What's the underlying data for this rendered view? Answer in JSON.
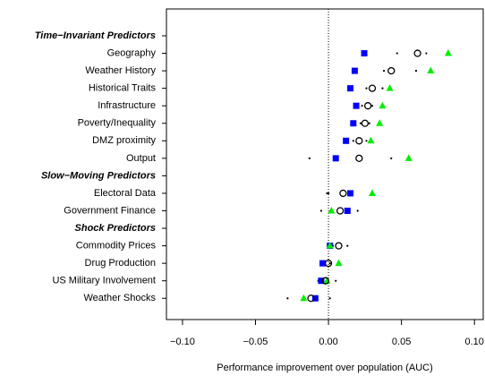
{
  "chart_data": {
    "type": "dotplot",
    "xlabel": "Performance improvement over population (AUC)",
    "categories": [
      "Time−Invariant Predictors",
      "Geography",
      "Weather History",
      "Historical Traits",
      "Infrastructure",
      "Poverty/Inequality",
      "DMZ proximity",
      "Output",
      "Slow−Moving Predictors",
      "Electoral Data",
      "Government Finance",
      "Shock Predictors",
      "Commodity Prices",
      "Drug Production",
      "US Military Involvement",
      "Weather Shocks"
    ],
    "category_style": [
      "header",
      "item",
      "item",
      "item",
      "item",
      "item",
      "item",
      "item",
      "header",
      "item",
      "item",
      "header",
      "item",
      "item",
      "item",
      "item"
    ],
    "series": [
      {
        "marker": "dot",
        "color": "#000000",
        "values": [
          null,
          0.047,
          0.038,
          0.026,
          0.023,
          0.022,
          0.017,
          -0.013,
          null,
          -0.001,
          -0.005,
          null,
          0.003,
          -0.004,
          -0.007,
          -0.028
        ]
      },
      {
        "marker": "dot",
        "color": "#000000",
        "values": [
          null,
          0.067,
          0.06,
          0.037,
          0.03,
          0.028,
          0.026,
          0.043,
          null,
          0.0,
          0.02,
          null,
          0.013,
          0.001,
          0.005,
          0.001
        ]
      },
      {
        "marker": "square",
        "color": "#0000ff",
        "values": [
          null,
          0.0245,
          0.018,
          0.015,
          0.019,
          0.017,
          0.012,
          0.005,
          null,
          0.015,
          0.013,
          null,
          0.001,
          -0.004,
          -0.005,
          -0.009
        ]
      },
      {
        "marker": "triangle",
        "color": "#00ee00",
        "values": [
          null,
          0.082,
          0.07,
          0.042,
          0.037,
          0.035,
          0.029,
          0.055,
          null,
          0.03,
          0.002,
          null,
          0.001,
          0.007,
          -0.001,
          -0.017
        ]
      },
      {
        "marker": "circle",
        "color": "#000000",
        "values": [
          null,
          0.061,
          0.043,
          0.03,
          0.027,
          0.025,
          0.021,
          0.021,
          null,
          0.01,
          0.008,
          null,
          0.007,
          0.0,
          -0.002,
          -0.012
        ]
      }
    ],
    "xlim": [
      -0.111,
      0.106
    ],
    "xticks": [
      {
        "value": -0.1,
        "label": "−0.10"
      },
      {
        "value": -0.05,
        "label": "−0.05"
      },
      {
        "value": 0,
        "label": "0.00"
      },
      {
        "value": 0.05,
        "label": "0.05"
      },
      {
        "value": 0.1,
        "label": "0.10"
      }
    ],
    "zero_line": true
  }
}
